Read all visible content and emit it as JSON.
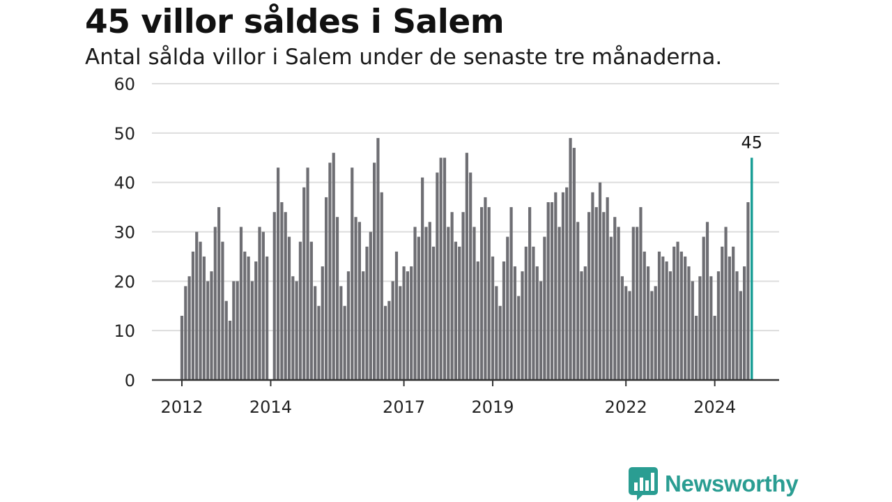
{
  "colors": {
    "bar": "#6e6e73",
    "highlight": "#1a9e96",
    "grid": "#dddddd",
    "axis": "#333333",
    "brand": "#2a9d92"
  },
  "brand": {
    "name": "Newsworthy",
    "icon": "bar-chart-badge-icon"
  },
  "chart_data": {
    "type": "bar",
    "title": "45 villor såldes i Salem",
    "subtitle": "Antal sålda villor i Salem under de senaste tre månaderna.",
    "xlabel": "",
    "ylabel": "",
    "ylim": [
      0,
      60
    ],
    "yticks": [
      0,
      10,
      20,
      30,
      40,
      50,
      60
    ],
    "xticks": [
      {
        "label": "2012",
        "index": 0
      },
      {
        "label": "2014",
        "index": 24
      },
      {
        "label": "2017",
        "index": 60
      },
      {
        "label": "2019",
        "index": 84
      },
      {
        "label": "2022",
        "index": 120
      },
      {
        "label": "2024",
        "index": 144
      }
    ],
    "grid": true,
    "values": [
      13,
      19,
      21,
      26,
      30,
      28,
      25,
      20,
      22,
      31,
      35,
      28,
      16,
      12,
      20,
      20,
      31,
      26,
      25,
      20,
      24,
      31,
      30,
      25,
      0,
      34,
      43,
      36,
      34,
      29,
      21,
      20,
      28,
      39,
      43,
      28,
      19,
      15,
      23,
      37,
      44,
      46,
      33,
      19,
      15,
      22,
      43,
      33,
      32,
      22,
      27,
      30,
      44,
      49,
      38,
      15,
      16,
      20,
      26,
      19,
      23,
      22,
      23,
      31,
      29,
      41,
      31,
      32,
      27,
      42,
      45,
      45,
      31,
      34,
      28,
      27,
      34,
      46,
      42,
      31,
      24,
      35,
      37,
      35,
      25,
      19,
      15,
      24,
      29,
      35,
      23,
      17,
      22,
      27,
      35,
      27,
      23,
      20,
      29,
      36,
      36,
      38,
      31,
      38,
      39,
      49,
      47,
      32,
      22,
      23,
      34,
      38,
      35,
      40,
      34,
      37,
      29,
      33,
      31,
      21,
      19,
      18,
      31,
      31,
      35,
      26,
      23,
      18,
      19,
      26,
      25,
      24,
      22,
      27,
      28,
      26,
      25,
      23,
      20,
      13,
      21,
      29,
      32,
      21,
      13,
      22,
      27,
      31,
      25,
      27,
      22,
      18,
      23,
      36,
      45
    ],
    "highlight": {
      "index": 154,
      "value": 45,
      "label": "45"
    }
  }
}
